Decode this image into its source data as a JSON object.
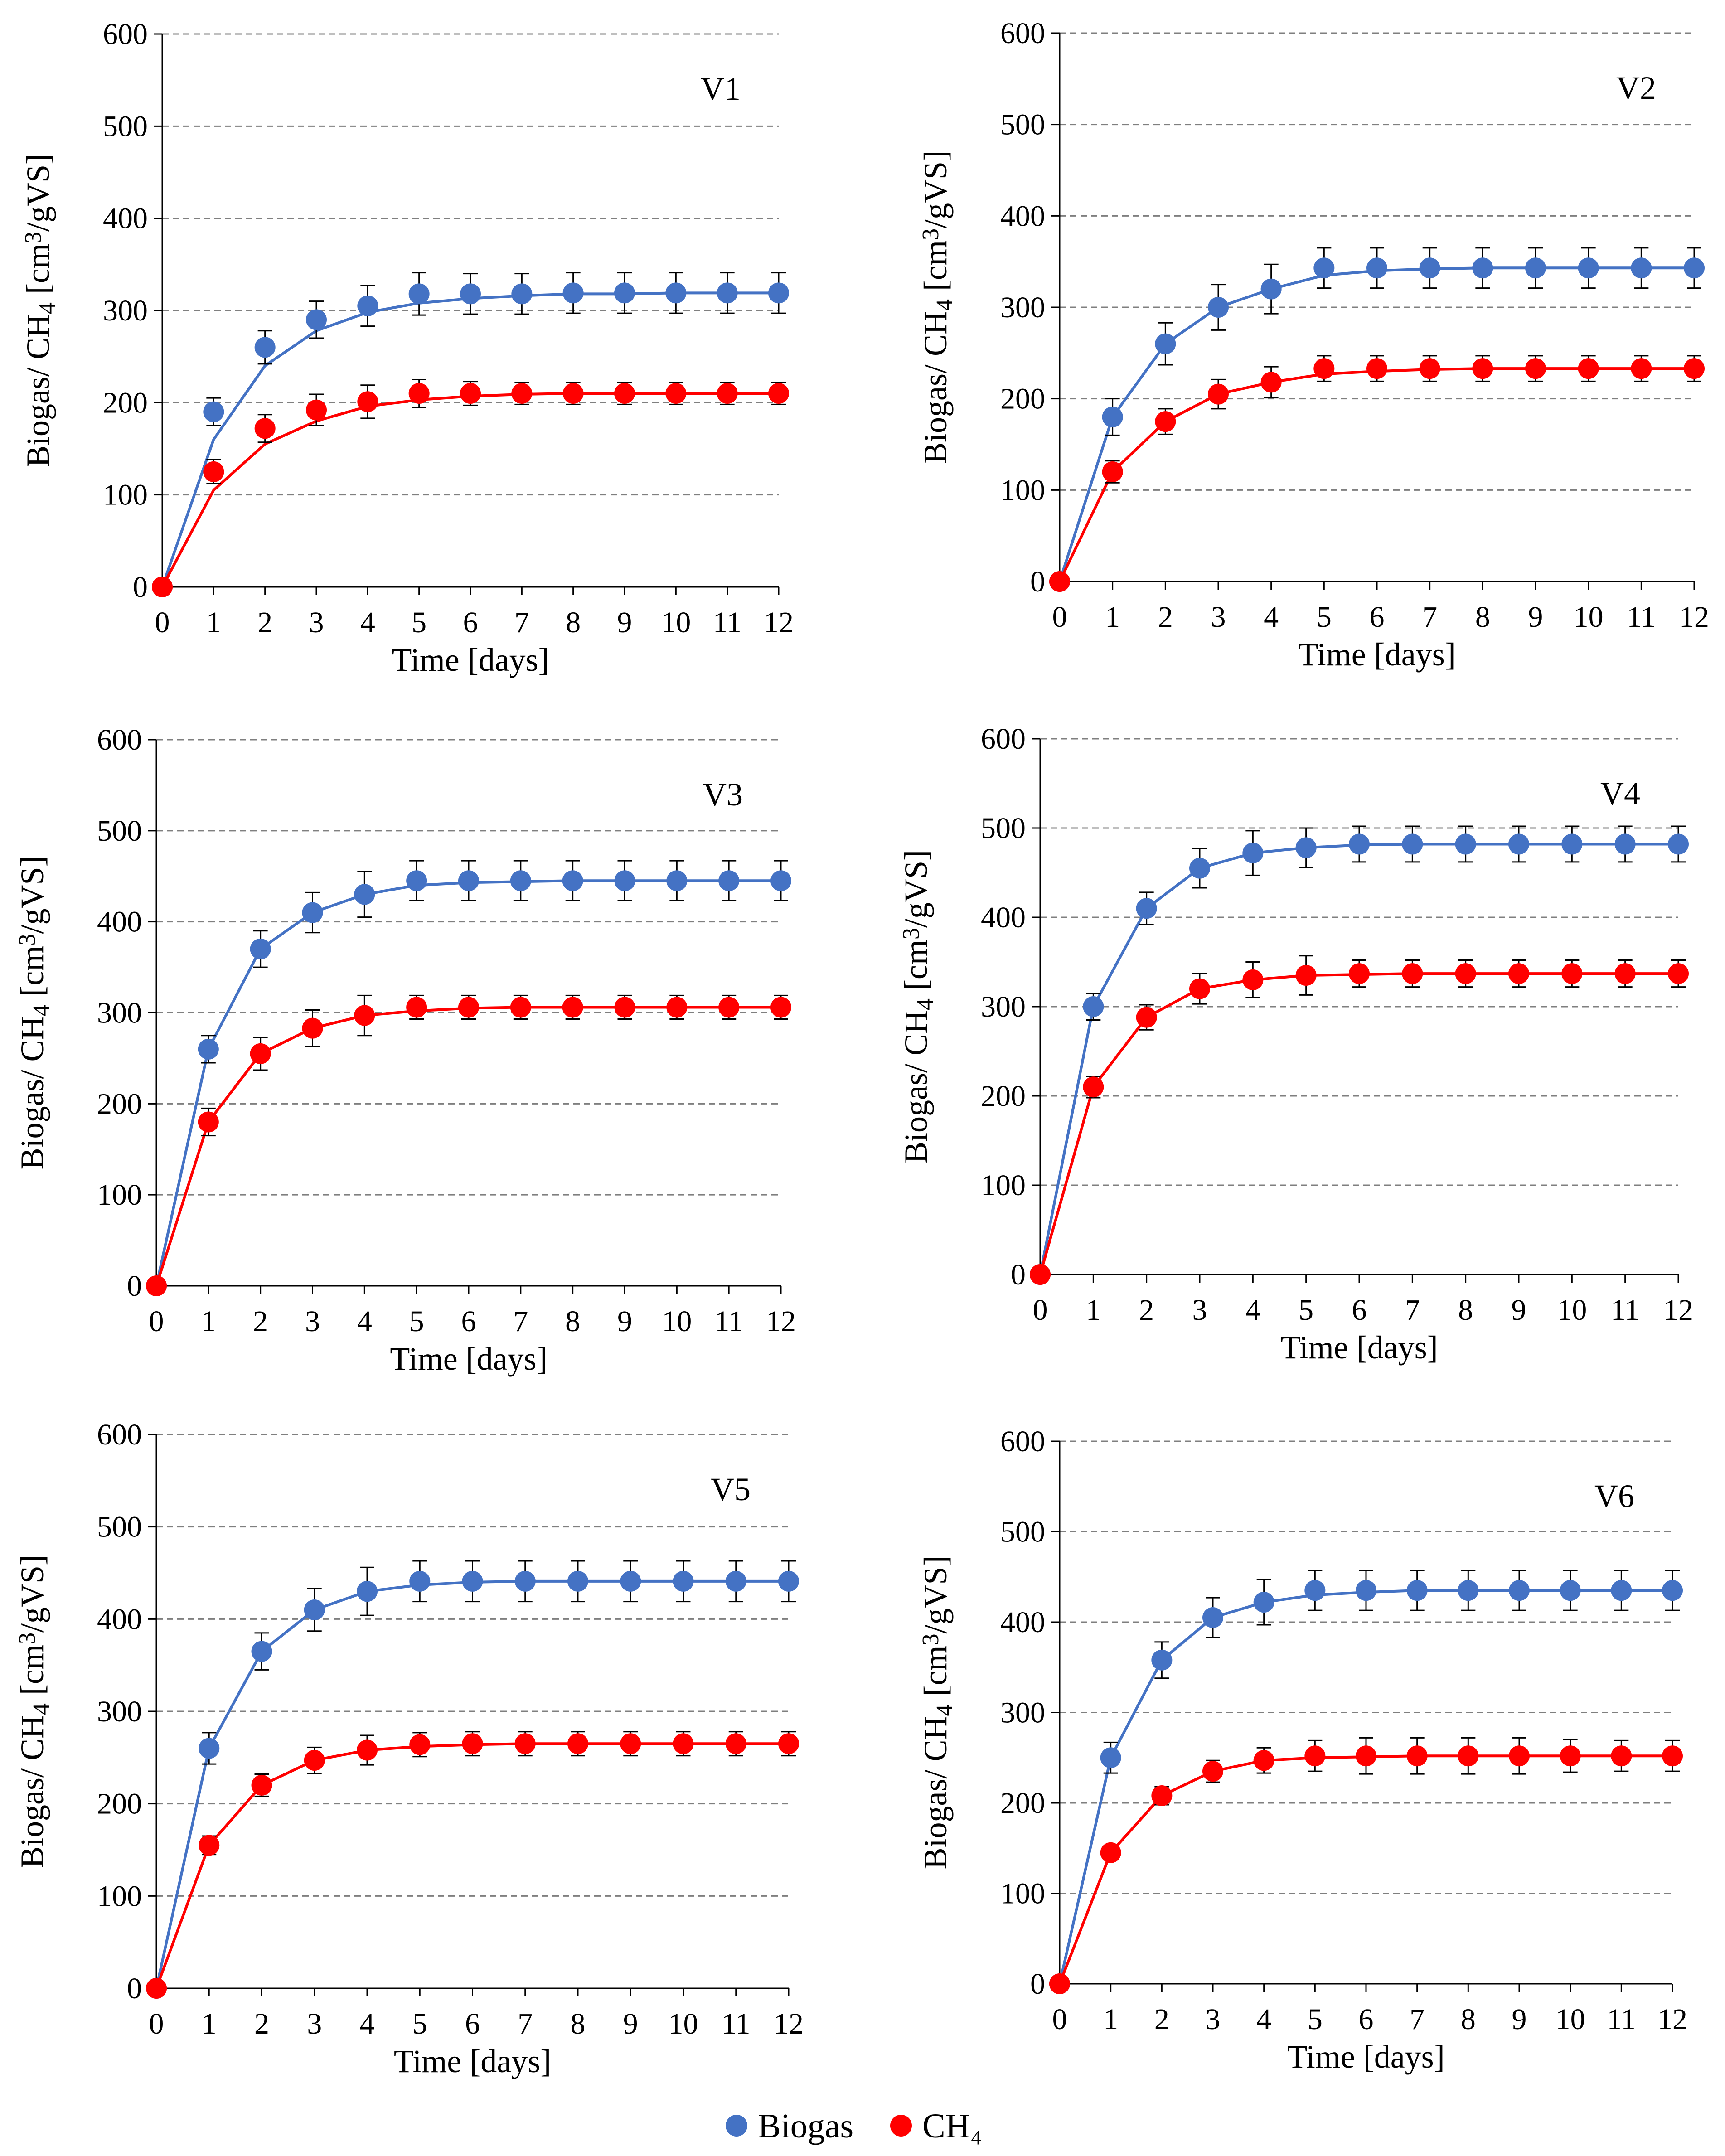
{
  "colors": {
    "biogas": "#4472C4",
    "ch4": "#FF0000",
    "grid": "#7F7F7F",
    "axis": "#000000"
  },
  "legend": {
    "placement": "bottom-center",
    "items": [
      {
        "label": "Biogas",
        "color": "#4472C4"
      },
      {
        "label": "CH₄",
        "color": "#FF0000"
      }
    ]
  },
  "chart_data": [
    {
      "type": "scatter",
      "label": "V1",
      "xlabel": "Time [days]",
      "ylabel_main": "Biogas/ CH",
      "ylabel_sub": "4",
      "ylabel_unit": " [cm",
      "ylabel_sup": "3",
      "ylabel_tail": "/gVS]",
      "xlim": [
        0,
        12
      ],
      "ylim": [
        0,
        600
      ],
      "xticks": [
        0,
        1,
        2,
        3,
        4,
        5,
        6,
        7,
        8,
        9,
        10,
        11,
        12
      ],
      "yticks": [
        0,
        100,
        200,
        300,
        400,
        500,
        600
      ],
      "grid": "horizontal-dashed",
      "series": [
        {
          "name": "Biogas",
          "x": [
            0,
            1,
            2,
            3,
            4,
            5,
            6,
            7,
            8,
            9,
            10,
            11,
            12
          ],
          "y": [
            0,
            190,
            260,
            290,
            305,
            318,
            318,
            318,
            319,
            319,
            319,
            319,
            319
          ],
          "err": [
            0,
            15,
            18,
            20,
            22,
            23,
            22,
            22,
            22,
            22,
            22,
            22,
            22
          ],
          "fit": [
            0,
            160,
            240,
            278,
            298,
            308,
            313,
            316,
            318,
            318,
            319,
            319,
            319
          ]
        },
        {
          "name": "CH4",
          "x": [
            0,
            1,
            2,
            3,
            4,
            5,
            6,
            7,
            8,
            9,
            10,
            11,
            12
          ],
          "y": [
            0,
            125,
            172,
            192,
            201,
            210,
            210,
            210,
            210,
            210,
            210,
            210,
            210
          ],
          "err": [
            0,
            13,
            15,
            17,
            18,
            15,
            13,
            12,
            12,
            12,
            12,
            12,
            12
          ],
          "fit": [
            0,
            105,
            155,
            180,
            196,
            203,
            207,
            209,
            210,
            210,
            210,
            210,
            210
          ]
        }
      ]
    },
    {
      "type": "scatter",
      "label": "V2",
      "xlabel": "Time [days]",
      "ylabel_main": "Biogas/ CH",
      "ylabel_sub": "4",
      "ylabel_unit": " [cm",
      "ylabel_sup": "3",
      "ylabel_tail": "/gVS]",
      "xlim": [
        0,
        12
      ],
      "ylim": [
        0,
        600
      ],
      "xticks": [
        0,
        1,
        2,
        3,
        4,
        5,
        6,
        7,
        8,
        9,
        10,
        11,
        12
      ],
      "yticks": [
        0,
        100,
        200,
        300,
        400,
        500,
        600
      ],
      "grid": "horizontal-dashed",
      "series": [
        {
          "name": "Biogas",
          "x": [
            0,
            1,
            2,
            3,
            4,
            5,
            6,
            7,
            8,
            9,
            10,
            11,
            12
          ],
          "y": [
            0,
            180,
            260,
            300,
            320,
            343,
            343,
            343,
            343,
            343,
            343,
            343,
            343
          ],
          "err": [
            0,
            20,
            23,
            25,
            27,
            22,
            22,
            22,
            22,
            22,
            22,
            22,
            22
          ],
          "fit": [
            0,
            180,
            260,
            300,
            320,
            335,
            340,
            342,
            343,
            343,
            343,
            343,
            343
          ]
        },
        {
          "name": "CH4",
          "x": [
            0,
            1,
            2,
            3,
            4,
            5,
            6,
            7,
            8,
            9,
            10,
            11,
            12
          ],
          "y": [
            0,
            120,
            175,
            205,
            218,
            233,
            233,
            233,
            233,
            233,
            233,
            233,
            233
          ],
          "err": [
            0,
            12,
            14,
            16,
            17,
            14,
            14,
            14,
            14,
            14,
            14,
            14,
            14
          ],
          "fit": [
            0,
            120,
            175,
            205,
            218,
            227,
            230,
            232,
            233,
            233,
            233,
            233,
            233
          ]
        }
      ]
    },
    {
      "type": "scatter",
      "label": "V3",
      "xlabel": "Time [days]",
      "ylabel_main": "Biogas/ CH",
      "ylabel_sub": "4",
      "ylabel_unit": " [cm",
      "ylabel_sup": "3",
      "ylabel_tail": "/gVS]",
      "xlim": [
        0,
        12
      ],
      "ylim": [
        0,
        600
      ],
      "xticks": [
        0,
        1,
        2,
        3,
        4,
        5,
        6,
        7,
        8,
        9,
        10,
        11,
        12
      ],
      "yticks": [
        0,
        100,
        200,
        300,
        400,
        500,
        600
      ],
      "grid": "horizontal-dashed",
      "series": [
        {
          "name": "Biogas",
          "x": [
            0,
            1,
            2,
            3,
            4,
            5,
            6,
            7,
            8,
            9,
            10,
            11,
            12
          ],
          "y": [
            0,
            260,
            370,
            410,
            430,
            445,
            445,
            445,
            445,
            445,
            445,
            445,
            445
          ],
          "err": [
            0,
            15,
            20,
            22,
            25,
            22,
            22,
            22,
            22,
            22,
            22,
            22,
            22
          ],
          "fit": [
            0,
            260,
            370,
            410,
            430,
            440,
            443,
            444,
            445,
            445,
            445,
            445,
            445
          ]
        },
        {
          "name": "CH4",
          "x": [
            0,
            1,
            2,
            3,
            4,
            5,
            6,
            7,
            8,
            9,
            10,
            11,
            12
          ],
          "y": [
            0,
            180,
            255,
            283,
            297,
            306,
            306,
            306,
            306,
            306,
            306,
            306,
            306
          ],
          "err": [
            0,
            15,
            18,
            20,
            22,
            13,
            13,
            13,
            13,
            13,
            13,
            13,
            13
          ],
          "fit": [
            0,
            180,
            255,
            283,
            297,
            302,
            305,
            306,
            306,
            306,
            306,
            306,
            306
          ]
        }
      ]
    },
    {
      "type": "scatter",
      "label": "V4",
      "xlabel": "Time [days]",
      "ylabel_main": "Biogas/ CH",
      "ylabel_sub": "4",
      "ylabel_unit": " [cm",
      "ylabel_sup": "3",
      "ylabel_tail": "/gVS]",
      "xlim": [
        0,
        12
      ],
      "ylim": [
        0,
        600
      ],
      "xticks": [
        0,
        1,
        2,
        3,
        4,
        5,
        6,
        7,
        8,
        9,
        10,
        11,
        12
      ],
      "yticks": [
        0,
        100,
        200,
        300,
        400,
        500,
        600
      ],
      "grid": "horizontal-dashed",
      "series": [
        {
          "name": "Biogas",
          "x": [
            0,
            1,
            2,
            3,
            4,
            5,
            6,
            7,
            8,
            9,
            10,
            11,
            12
          ],
          "y": [
            0,
            300,
            410,
            455,
            472,
            478,
            482,
            482,
            482,
            482,
            482,
            482,
            482
          ],
          "err": [
            0,
            15,
            18,
            22,
            25,
            22,
            20,
            20,
            20,
            20,
            20,
            20,
            20
          ],
          "fit": [
            0,
            300,
            410,
            455,
            472,
            478,
            481,
            482,
            482,
            482,
            482,
            482,
            482
          ]
        },
        {
          "name": "CH4",
          "x": [
            0,
            1,
            2,
            3,
            4,
            5,
            6,
            7,
            8,
            9,
            10,
            11,
            12
          ],
          "y": [
            0,
            210,
            288,
            320,
            330,
            335,
            337,
            337,
            337,
            337,
            337,
            337,
            337
          ],
          "err": [
            0,
            12,
            14,
            17,
            20,
            22,
            15,
            15,
            15,
            15,
            15,
            15,
            15
          ],
          "fit": [
            0,
            210,
            288,
            320,
            330,
            335,
            336,
            337,
            337,
            337,
            337,
            337,
            337
          ]
        }
      ]
    },
    {
      "type": "scatter",
      "label": "V5",
      "xlabel": "Time [days]",
      "ylabel_main": "Biogas/ CH",
      "ylabel_sub": "4",
      "ylabel_unit": " [cm",
      "ylabel_sup": "3",
      "ylabel_tail": "/gVS]",
      "xlim": [
        0,
        12
      ],
      "ylim": [
        0,
        600
      ],
      "xticks": [
        0,
        1,
        2,
        3,
        4,
        5,
        6,
        7,
        8,
        9,
        10,
        11,
        12
      ],
      "yticks": [
        0,
        100,
        200,
        300,
        400,
        500,
        600
      ],
      "grid": "horizontal-dashed",
      "series": [
        {
          "name": "Biogas",
          "x": [
            0,
            1,
            2,
            3,
            4,
            5,
            6,
            7,
            8,
            9,
            10,
            11,
            12
          ],
          "y": [
            0,
            260,
            365,
            410,
            430,
            441,
            441,
            441,
            441,
            441,
            441,
            441,
            441
          ],
          "err": [
            0,
            17,
            20,
            23,
            26,
            22,
            22,
            22,
            22,
            22,
            22,
            22,
            22
          ],
          "fit": [
            0,
            260,
            365,
            410,
            430,
            437,
            440,
            441,
            441,
            441,
            441,
            441,
            441
          ]
        },
        {
          "name": "CH4",
          "x": [
            0,
            1,
            2,
            3,
            4,
            5,
            6,
            7,
            8,
            9,
            10,
            11,
            12
          ],
          "y": [
            0,
            155,
            220,
            247,
            258,
            264,
            265,
            265,
            265,
            265,
            265,
            265,
            265
          ],
          "err": [
            0,
            10,
            12,
            14,
            16,
            13,
            13,
            13,
            13,
            13,
            13,
            13,
            13
          ],
          "fit": [
            0,
            155,
            220,
            247,
            258,
            262,
            264,
            265,
            265,
            265,
            265,
            265,
            265
          ]
        }
      ]
    },
    {
      "type": "scatter",
      "label": "V6",
      "xlabel": "Time [days]",
      "ylabel_main": "Biogas/ CH",
      "ylabel_sub": "4",
      "ylabel_unit": " [cm",
      "ylabel_sup": "3",
      "ylabel_tail": "/gVS]",
      "xlim": [
        0,
        12
      ],
      "ylim": [
        0,
        600
      ],
      "xticks": [
        0,
        1,
        2,
        3,
        4,
        5,
        6,
        7,
        8,
        9,
        10,
        11,
        12
      ],
      "yticks": [
        0,
        100,
        200,
        300,
        400,
        500,
        600
      ],
      "grid": "horizontal-dashed",
      "series": [
        {
          "name": "Biogas",
          "x": [
            0,
            1,
            2,
            3,
            4,
            5,
            6,
            7,
            8,
            9,
            10,
            11,
            12
          ],
          "y": [
            0,
            250,
            358,
            405,
            422,
            435,
            435,
            435,
            435,
            435,
            435,
            435,
            435
          ],
          "err": [
            0,
            17,
            20,
            22,
            25,
            22,
            22,
            22,
            22,
            22,
            22,
            22,
            22
          ],
          "fit": [
            0,
            250,
            358,
            405,
            422,
            430,
            433,
            435,
            435,
            435,
            435,
            435,
            435
          ]
        },
        {
          "name": "CH4",
          "x": [
            0,
            1,
            2,
            3,
            4,
            5,
            6,
            7,
            8,
            9,
            10,
            11,
            12
          ],
          "y": [
            0,
            145,
            208,
            235,
            247,
            252,
            252,
            252,
            252,
            252,
            252,
            252,
            252
          ],
          "err": [
            0,
            8,
            10,
            12,
            14,
            17,
            20,
            20,
            20,
            20,
            18,
            17,
            17
          ],
          "fit": [
            0,
            145,
            208,
            235,
            247,
            250,
            251,
            252,
            252,
            252,
            252,
            252,
            252
          ]
        }
      ]
    }
  ]
}
